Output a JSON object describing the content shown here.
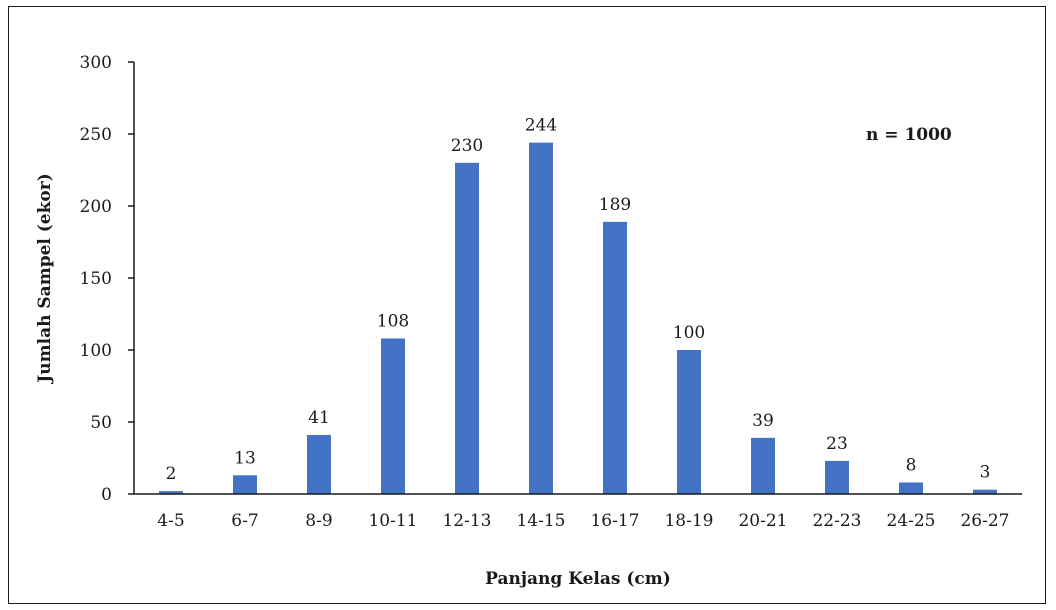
{
  "chart_data": {
    "type": "bar",
    "title": "",
    "xlabel": "Panjang Kelas (cm)",
    "ylabel": "Jumlah Sampel (ekor)",
    "annotation": "n = 1000",
    "categories": [
      "4-5",
      "6-7",
      "8-9",
      "10-11",
      "12-13",
      "14-15",
      "16-17",
      "18-19",
      "20-21",
      "22-23",
      "24-25",
      "26-27"
    ],
    "values": [
      2,
      13,
      41,
      108,
      230,
      244,
      189,
      100,
      39,
      23,
      8,
      3
    ],
    "ylim": [
      0,
      300
    ],
    "yticks": [
      0,
      50,
      100,
      150,
      200,
      250,
      300
    ],
    "grid": false,
    "legend": "none",
    "bar_color": "#4472C4",
    "show_data_labels": true
  }
}
